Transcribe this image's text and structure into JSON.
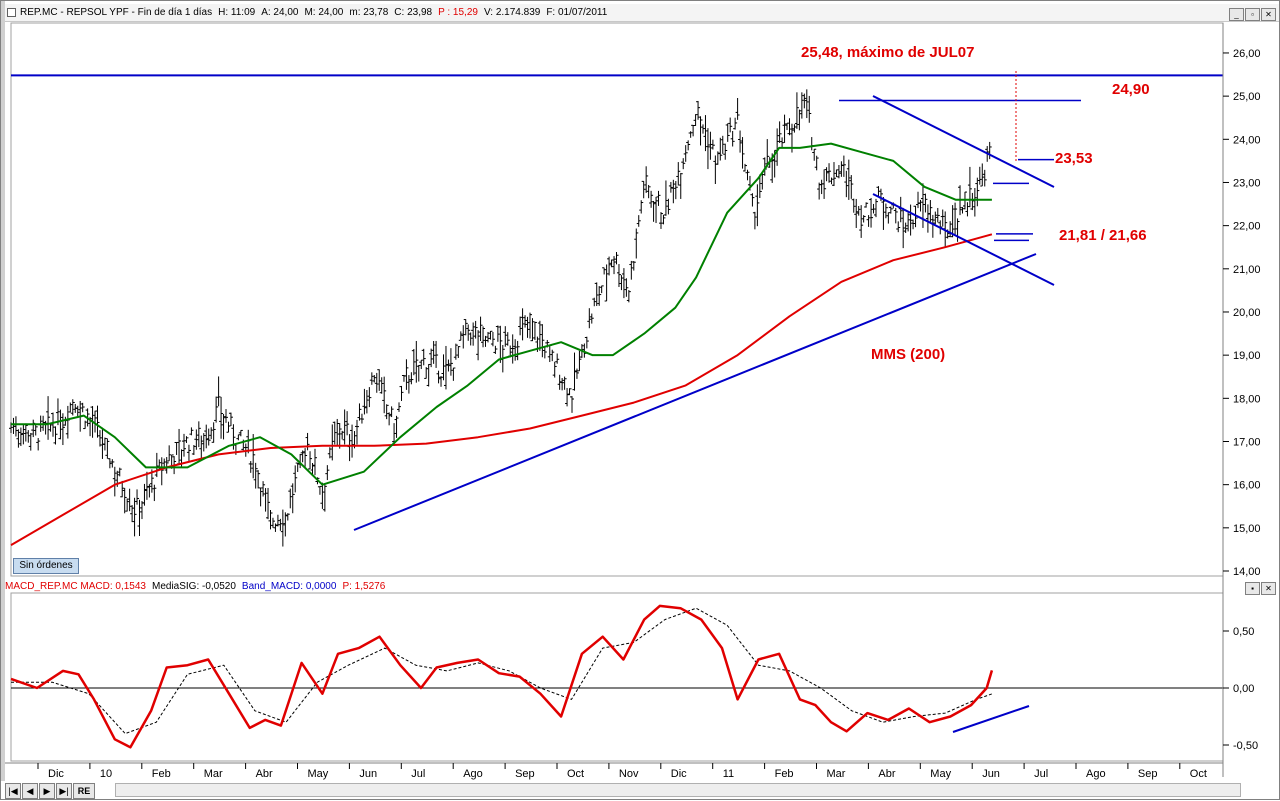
{
  "price_header": {
    "parts": [
      {
        "text": "REP.MC - REPSOL YPF - Fin de día 1 días",
        "color": "#000000"
      },
      {
        "text": "H: 11:09",
        "color": "#000000"
      },
      {
        "text": "A: 24,00",
        "color": "#000000"
      },
      {
        "text": "M: 24,00",
        "color": "#000000"
      },
      {
        "text": "m: 23,78",
        "color": "#000000"
      },
      {
        "text": "C: 23,98",
        "color": "#000000"
      },
      {
        "text": "P : 15,29",
        "color": "#e00000"
      },
      {
        "text": "V: 2.174.839",
        "color": "#000000"
      },
      {
        "text": "F: 01/07/2011",
        "color": "#000000"
      }
    ]
  },
  "macd_header": {
    "parts": [
      {
        "text": "MACD_REP.MC  MACD: 0,1543",
        "color": "#e00000"
      },
      {
        "text": "MediaSIG: -0,0520",
        "color": "#000000"
      },
      {
        "text": "Band_MACD: 0,0000",
        "color": "#0000c8"
      },
      {
        "text": "P: 1,5276",
        "color": "#e00000"
      }
    ]
  },
  "window_buttons": [
    "_",
    "▫",
    "✕"
  ],
  "sin_ordenes": "Sin órdenes",
  "nav_buttons": [
    "|◀",
    "◀",
    "▶",
    "▶|"
  ],
  "nav_re": "RE",
  "annotations": {
    "max_label": "25,48, máximo de JUL07",
    "level_2490": "24,90",
    "level_2353": "23,53",
    "level_2181": "21,81 / 21,66",
    "mms_label": "MMS (200)"
  },
  "colors": {
    "price_bars": "#000000",
    "sma_200": "#e00000",
    "sma_short": "#008000",
    "trendlines": "#0000c8",
    "annotation_text": "#e00000",
    "macd_line": "#e00000",
    "macd_signal": "#000000"
  },
  "chart_data": [
    {
      "type": "candlestick-bars",
      "title": "REP.MC - REPSOL YPF - Fin de día 1 días",
      "x_labels": [
        "Dic",
        "10",
        "Feb",
        "Mar",
        "Abr",
        "May",
        "Jun",
        "Jul",
        "Ago",
        "Sep",
        "Oct",
        "Nov",
        "Dic",
        "11",
        "Feb",
        "Mar",
        "Abr",
        "May",
        "Jun",
        "Jul",
        "Ago",
        "Sep",
        "Oct"
      ],
      "y_ticks": [
        "14,00",
        "15,00",
        "16,00",
        "17,00",
        "18,00",
        "19,00",
        "20,00",
        "21,00",
        "22,00",
        "23,00",
        "24,00",
        "25,00",
        "26,00"
      ],
      "ylim": [
        14.0,
        26.0
      ],
      "close_path": {
        "x_month_index": [
          0,
          0.5,
          1,
          1.2,
          1.6,
          2.0,
          2.4,
          2.8,
          3.0,
          3.4,
          3.8,
          4.0,
          4.3,
          4.7,
          5.0,
          5.3,
          5.7,
          6.0,
          6.3,
          6.6,
          7.0,
          7.4,
          7.6,
          8.0,
          8.4,
          8.8,
          9.2,
          9.6,
          10.0,
          10.4,
          10.8,
          11.2,
          11.6,
          11.9,
          12.2,
          12.6,
          13.0,
          13.2,
          13.6,
          14.0,
          14.3,
          14.6,
          15.0,
          15.3,
          15.6,
          16.0,
          16.4,
          16.8,
          17.2,
          17.6,
          18.0,
          18.4,
          18.7,
          18.9
        ],
        "close": [
          17.4,
          17.2,
          17.5,
          18.0,
          17.4,
          16.4,
          15.4,
          16.2,
          16.6,
          17.0,
          17.2,
          17.8,
          17.2,
          16.6,
          15.2,
          15.3,
          17.0,
          15.9,
          17.4,
          17.1,
          18.6,
          17.3,
          18.5,
          18.9,
          18.6,
          19.6,
          19.4,
          19.2,
          19.8,
          19.0,
          18.1,
          20.0,
          21.4,
          20.5,
          23.0,
          22.3,
          23.8,
          24.7,
          23.5,
          24.4,
          22.3,
          23.5,
          24.3,
          24.9,
          23.0,
          23.4,
          22.2,
          22.7,
          22.0,
          22.5,
          21.9,
          22.6,
          23.0,
          23.98
        ]
      },
      "series": [
        {
          "name": "MMS (200)",
          "x_month_index": [
            0,
            1,
            2,
            3,
            4,
            5,
            6,
            7,
            8,
            9,
            10,
            11,
            12,
            13,
            14,
            15,
            16,
            17,
            18,
            18.9
          ],
          "values": [
            14.6,
            15.3,
            16.0,
            16.4,
            16.7,
            16.85,
            16.9,
            16.9,
            16.95,
            17.1,
            17.3,
            17.6,
            17.9,
            18.3,
            19.0,
            19.9,
            20.7,
            21.2,
            21.5,
            21.8
          ]
        },
        {
          "name": "",
          "x_month_index": [
            0,
            0.7,
            1.4,
            2.0,
            2.6,
            3.4,
            4.2,
            4.8,
            5.4,
            6.0,
            6.8,
            7.5,
            8.2,
            8.8,
            9.4,
            10.0,
            10.6,
            11.2,
            11.6,
            12.2,
            12.8,
            13.2,
            13.8,
            14.4,
            14.8,
            15.2,
            15.8,
            16.4,
            17.0,
            17.6,
            18.2,
            18.7,
            18.9
          ],
          "values": [
            17.4,
            17.4,
            17.6,
            17.1,
            16.4,
            16.4,
            16.9,
            17.1,
            16.7,
            16.0,
            16.3,
            17.1,
            17.8,
            18.3,
            18.9,
            19.1,
            19.3,
            19.0,
            19.0,
            19.5,
            20.1,
            20.8,
            22.3,
            23.1,
            23.8,
            23.8,
            23.9,
            23.7,
            23.5,
            22.9,
            22.6,
            22.6,
            22.6
          ]
        }
      ],
      "lines": [
        {
          "label": "25,48, máximo de JUL07",
          "y": 25.48
        },
        {
          "label": "24,90",
          "y": 24.9
        },
        {
          "label": "23,53",
          "y": 23.53
        },
        {
          "label": "21,81 / 21,66",
          "y": [
            21.81,
            21.66
          ]
        }
      ],
      "grid": false
    },
    {
      "type": "line",
      "title": "MACD_REP.MC",
      "y_ticks": [
        "-0,50",
        "0,00",
        "0,50"
      ],
      "ylim": [
        -0.6,
        0.8
      ],
      "series": [
        {
          "name": "MACD",
          "x_month_index": [
            0,
            0.5,
            1.0,
            1.3,
            1.6,
            2.0,
            2.3,
            2.7,
            3.0,
            3.4,
            3.8,
            4.2,
            4.6,
            4.9,
            5.2,
            5.6,
            6.0,
            6.3,
            6.7,
            7.1,
            7.5,
            7.9,
            8.2,
            8.6,
            9.0,
            9.4,
            9.8,
            10.2,
            10.6,
            11.0,
            11.4,
            11.8,
            12.2,
            12.5,
            12.9,
            13.3,
            13.7,
            14.0,
            14.4,
            14.8,
            15.2,
            15.5,
            15.8,
            16.1,
            16.5,
            16.9,
            17.3,
            17.7,
            18.1,
            18.5,
            18.8,
            18.9
          ],
          "values": [
            0.08,
            0.0,
            0.15,
            0.12,
            -0.1,
            -0.45,
            -0.52,
            -0.2,
            0.18,
            0.2,
            0.25,
            -0.05,
            -0.35,
            -0.28,
            -0.33,
            0.22,
            -0.05,
            0.3,
            0.35,
            0.45,
            0.2,
            0.0,
            0.18,
            0.22,
            0.25,
            0.13,
            0.1,
            -0.05,
            -0.25,
            0.3,
            0.45,
            0.25,
            0.6,
            0.72,
            0.7,
            0.6,
            0.35,
            -0.1,
            0.25,
            0.3,
            -0.1,
            -0.15,
            -0.3,
            -0.38,
            -0.22,
            -0.28,
            -0.18,
            -0.3,
            -0.25,
            -0.15,
            0.0,
            0.1543
          ]
        },
        {
          "name": "MediaSIG",
          "x_month_index": [
            0,
            0.8,
            1.5,
            2.2,
            2.8,
            3.4,
            4.1,
            4.7,
            5.3,
            5.9,
            6.5,
            7.2,
            7.8,
            8.4,
            9.0,
            9.6,
            10.2,
            10.8,
            11.4,
            12.0,
            12.6,
            13.2,
            13.8,
            14.4,
            15.0,
            15.6,
            16.2,
            16.8,
            17.4,
            18.0,
            18.6,
            18.9
          ],
          "values": [
            0.05,
            0.05,
            -0.05,
            -0.4,
            -0.3,
            0.12,
            0.2,
            -0.2,
            -0.3,
            0.05,
            0.2,
            0.35,
            0.2,
            0.15,
            0.22,
            0.15,
            0.0,
            -0.1,
            0.35,
            0.4,
            0.6,
            0.7,
            0.55,
            0.2,
            0.15,
            0.0,
            -0.2,
            -0.3,
            -0.25,
            -0.22,
            -0.1,
            -0.052
          ]
        }
      ],
      "grid": false
    }
  ]
}
